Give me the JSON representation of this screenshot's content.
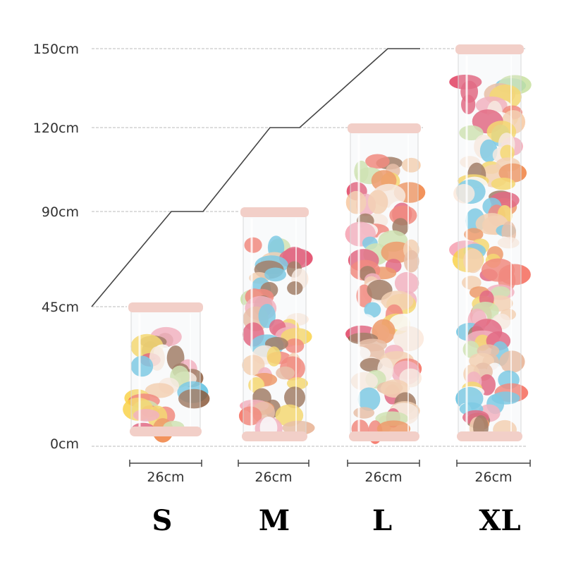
{
  "height_axis": {
    "ticks": [
      {
        "label": "150cm",
        "value": 150
      },
      {
        "label": "120cm",
        "value": 120
      },
      {
        "label": "90cm",
        "value": 90
      },
      {
        "label": "45cm",
        "value": 45
      },
      {
        "label": "0cm",
        "value": 0
      }
    ]
  },
  "products": [
    {
      "size": "S",
      "height_cm": 45,
      "diameter_label": "26cm"
    },
    {
      "size": "M",
      "height_cm": 90,
      "diameter_label": "26cm"
    },
    {
      "size": "L",
      "height_cm": 120,
      "diameter_label": "26cm"
    },
    {
      "size": "XL",
      "height_cm": 150,
      "diameter_label": "26cm"
    }
  ],
  "colors": {
    "lid": "#f2cfc8",
    "guide_line": "#444444",
    "dash": "#bbbbbb"
  }
}
